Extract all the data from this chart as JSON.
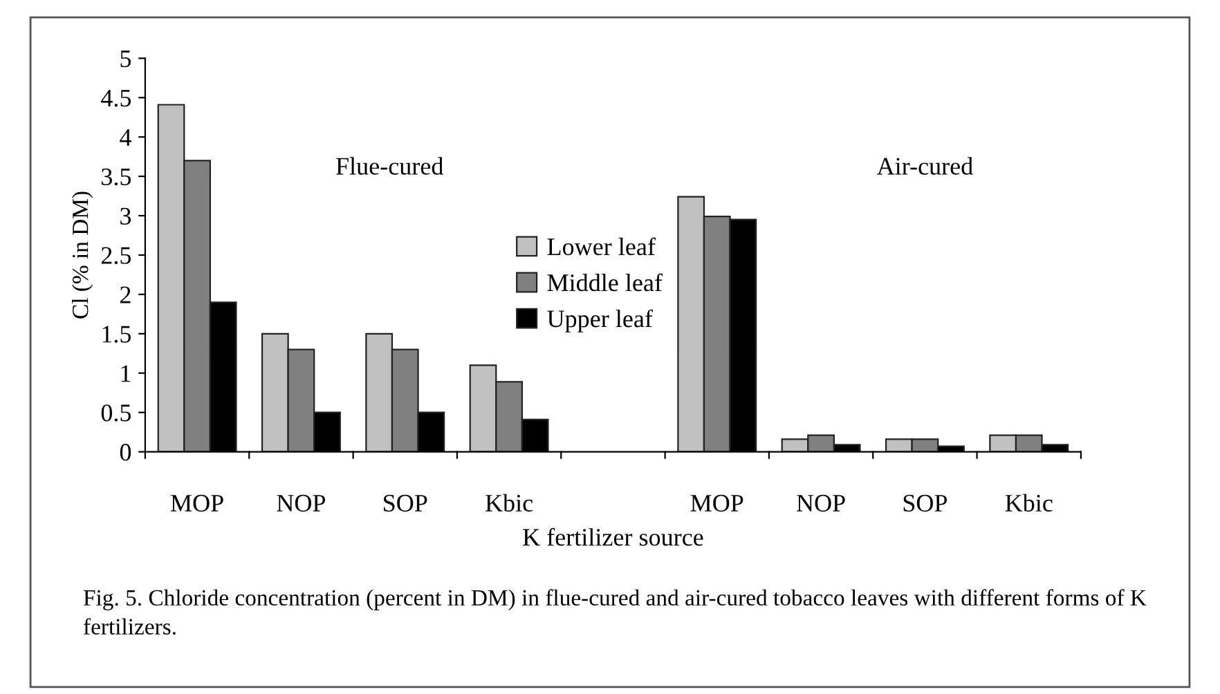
{
  "chart_data": {
    "type": "bar",
    "xlabel": "K fertilizer source",
    "ylabel": "Cl (% in DM)",
    "categories": [
      "MOP",
      "NOP",
      "SOP",
      "Kbic",
      null,
      "MOP",
      "NOP",
      "SOP",
      "Kbic"
    ],
    "series": [
      {
        "name": "Lower leaf",
        "color": "#c0c0c0",
        "values": [
          4.41,
          1.5,
          1.5,
          1.1,
          null,
          3.24,
          0.16,
          0.16,
          0.21
        ]
      },
      {
        "name": "Middle leaf",
        "color": "#808080",
        "values": [
          3.7,
          1.3,
          1.3,
          0.89,
          null,
          2.99,
          0.21,
          0.16,
          0.21
        ]
      },
      {
        "name": "Upper leaf",
        "color": "#000000",
        "values": [
          1.9,
          0.5,
          0.5,
          0.41,
          null,
          2.95,
          0.09,
          0.07,
          0.09
        ]
      }
    ],
    "ylim": [
      0,
      5
    ],
    "yticks": [
      0,
      0.5,
      1,
      1.5,
      2,
      2.5,
      3,
      3.5,
      4,
      4.5,
      5
    ],
    "legend": "center",
    "grid": false,
    "annotations": [
      "Flue-cured",
      "Air-cured",
      "Fig. 5. Chloride concentration (percent in DM) in flue-cured and air-cured tobacco leaves with different forms of K fertilizers."
    ]
  }
}
